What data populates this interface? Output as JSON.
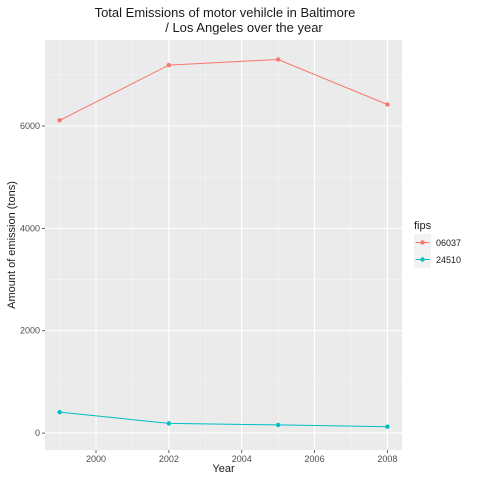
{
  "chart_data": {
    "type": "line",
    "title_line1": "Total Emissions of motor vehilcle in Baltimore",
    "title_line2": "/ Los Angeles over the year",
    "xlabel": "Year",
    "ylabel": "Amount of emission (tons)",
    "xlim": [
      1998.6,
      2008.4
    ],
    "ylim": [
      -330,
      7680
    ],
    "x_ticks": [
      2000,
      2002,
      2004,
      2006,
      2008
    ],
    "x_tick_labels": [
      "2000",
      "2002",
      "2004",
      "2006",
      "2008"
    ],
    "y_ticks": [
      0,
      2000,
      4000,
      6000
    ],
    "y_tick_labels": [
      "0",
      "2000",
      "4000",
      "6000"
    ],
    "grid": true,
    "legend": {
      "title": "fips",
      "placement": "right"
    },
    "series": [
      {
        "name": "06037",
        "color": "#F8766D",
        "x": [
          1999,
          2002,
          2005,
          2008
        ],
        "y": [
          6110,
          7190,
          7300,
          6420
        ]
      },
      {
        "name": "24510",
        "color": "#00BFC4",
        "x": [
          1999,
          2002,
          2005,
          2008
        ],
        "y": [
          410,
          190,
          160,
          125
        ]
      }
    ]
  }
}
